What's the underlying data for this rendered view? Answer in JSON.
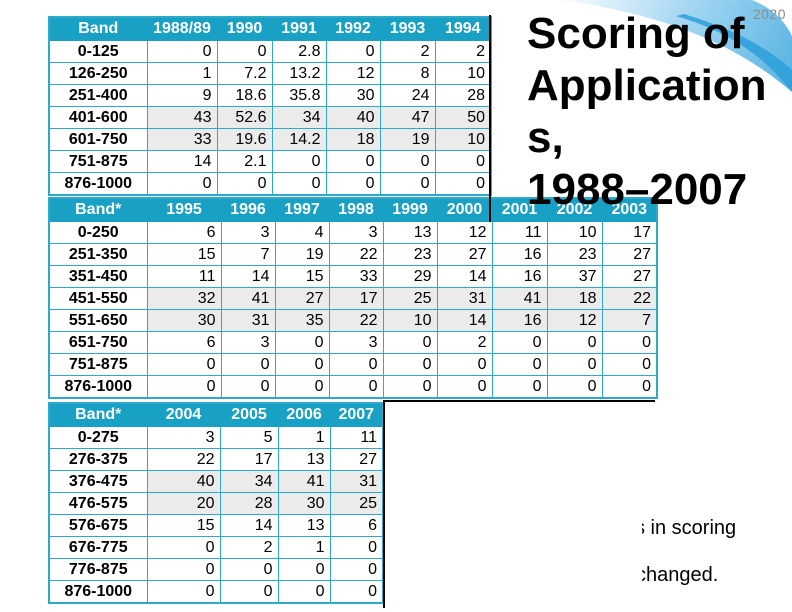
{
  "slide": {
    "corner_year": "2020",
    "title_lines": [
      "Scoring of",
      "Application",
      "s,",
      "1988–2007"
    ],
    "bottom_text_fragments": [
      "s in scoring",
      "changed."
    ]
  },
  "colors": {
    "table_header_bg": "#18A0C5",
    "table_border": "#2EA8CB",
    "highlight_cell_bg": "#EBEBEB",
    "swoosh_blue_deep": "#2D9FD9",
    "swoosh_blue_mid": "#55B2E2",
    "corner_year_color": "#8C8C8C"
  },
  "tables": [
    {
      "id": "bands_1988_1994",
      "header": [
        "Band",
        "1988/89",
        "1990",
        "1991",
        "1992",
        "1993",
        "1994"
      ],
      "rows": [
        {
          "band": "0-125",
          "values": [
            "0",
            "0",
            "2.8",
            "0",
            "2",
            "2"
          ],
          "highlight": false
        },
        {
          "band": "126-250",
          "values": [
            "1",
            "7.2",
            "13.2",
            "12",
            "8",
            "10"
          ],
          "highlight": false
        },
        {
          "band": "251-400",
          "values": [
            "9",
            "18.6",
            "35.8",
            "30",
            "24",
            "28"
          ],
          "highlight": false
        },
        {
          "band": "401-600",
          "values": [
            "43",
            "52.6",
            "34",
            "40",
            "47",
            "50"
          ],
          "highlight": true
        },
        {
          "band": "601-750",
          "values": [
            "33",
            "19.6",
            "14.2",
            "18",
            "19",
            "10"
          ],
          "highlight": true
        },
        {
          "band": "751-875",
          "values": [
            "14",
            "2.1",
            "0",
            "0",
            "0",
            "0"
          ],
          "highlight": false
        },
        {
          "band": "876-1000",
          "values": [
            "0",
            "0",
            "0",
            "0",
            "0",
            "0"
          ],
          "highlight": false
        }
      ]
    },
    {
      "id": "bands_1995_2003",
      "header": [
        "Band*",
        "1995",
        "1996",
        "1997",
        "1998",
        "1999",
        "2000",
        "2001",
        "2002",
        "2003"
      ],
      "rows": [
        {
          "band": "0-250",
          "values": [
            "6",
            "3",
            "4",
            "3",
            "13",
            "12",
            "11",
            "10",
            "17"
          ],
          "highlight": false
        },
        {
          "band": "251-350",
          "values": [
            "15",
            "7",
            "19",
            "22",
            "23",
            "27",
            "16",
            "23",
            "27"
          ],
          "highlight": false
        },
        {
          "band": "351-450",
          "values": [
            "11",
            "14",
            "15",
            "33",
            "29",
            "14",
            "16",
            "37",
            "27"
          ],
          "highlight": false
        },
        {
          "band": "451-550",
          "values": [
            "32",
            "41",
            "27",
            "17",
            "25",
            "31",
            "41",
            "18",
            "22"
          ],
          "highlight": true
        },
        {
          "band": "551-650",
          "values": [
            "30",
            "31",
            "35",
            "22",
            "10",
            "14",
            "16",
            "12",
            "7"
          ],
          "highlight": true
        },
        {
          "band": "651-750",
          "values": [
            "6",
            "3",
            "0",
            "3",
            "0",
            "2",
            "0",
            "0",
            "0"
          ],
          "highlight": false
        },
        {
          "band": "751-875",
          "values": [
            "0",
            "0",
            "0",
            "0",
            "0",
            "0",
            "0",
            "0",
            "0"
          ],
          "highlight": false
        },
        {
          "band": "876-1000",
          "values": [
            "0",
            "0",
            "0",
            "0",
            "0",
            "0",
            "0",
            "0",
            "0"
          ],
          "highlight": false
        }
      ]
    },
    {
      "id": "bands_2004_2007",
      "header": [
        "Band*",
        "2004",
        "2005",
        "2006",
        "2007"
      ],
      "rows": [
        {
          "band": "0-275",
          "values": [
            "3",
            "5",
            "1",
            "11"
          ],
          "highlight": false
        },
        {
          "band": "276-375",
          "values": [
            "22",
            "17",
            "13",
            "27"
          ],
          "highlight": false
        },
        {
          "band": "376-475",
          "values": [
            "40",
            "34",
            "41",
            "31"
          ],
          "highlight": true
        },
        {
          "band": "476-575",
          "values": [
            "20",
            "28",
            "30",
            "25"
          ],
          "highlight": true
        },
        {
          "band": "576-675",
          "values": [
            "15",
            "14",
            "13",
            "6"
          ],
          "highlight": false
        },
        {
          "band": "676-775",
          "values": [
            "0",
            "2",
            "1",
            "0"
          ],
          "highlight": false
        },
        {
          "band": "776-875",
          "values": [
            "0",
            "0",
            "0",
            "0"
          ],
          "highlight": false
        },
        {
          "band": "876-1000",
          "values": [
            "0",
            "0",
            "0",
            "0"
          ],
          "highlight": false
        }
      ]
    }
  ]
}
